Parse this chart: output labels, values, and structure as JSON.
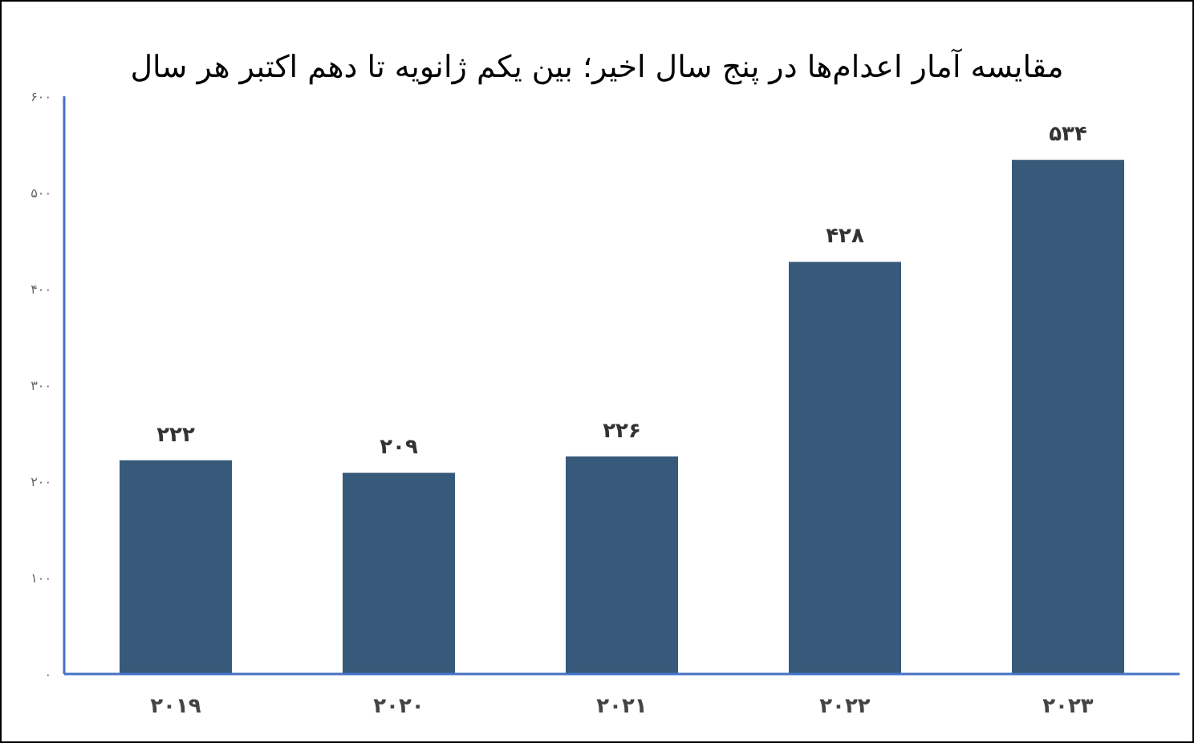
{
  "chart_data": {
    "type": "bar",
    "title": "مقایسه آمار اعدام‌ها در پنج سال اخیر؛ بین یکم ژانویه تا دهم اکتبر هر سال",
    "categories": [
      "۲۰۱۹",
      "۲۰۲۰",
      "۲۰۲۱",
      "۲۰۲۲",
      "۲۰۲۳"
    ],
    "values": [
      222,
      209,
      226,
      428,
      534
    ],
    "value_labels": [
      "۲۲۲",
      "۲۰۹",
      "۲۲۶",
      "۴۲۸",
      "۵۳۴"
    ],
    "color": "#375a7a",
    "ylim": [
      0,
      600
    ],
    "yticks": [
      {
        "value": 0,
        "label": "۰"
      },
      {
        "value": 100,
        "label": "۱۰۰"
      },
      {
        "value": 200,
        "label": "۲۰۰"
      },
      {
        "value": 300,
        "label": "۳۰۰"
      },
      {
        "value": 400,
        "label": "۴۰۰"
      },
      {
        "value": 500,
        "label": "۵۰۰"
      },
      {
        "value": 600,
        "label": "۶۰۰"
      }
    ],
    "grid": false
  }
}
